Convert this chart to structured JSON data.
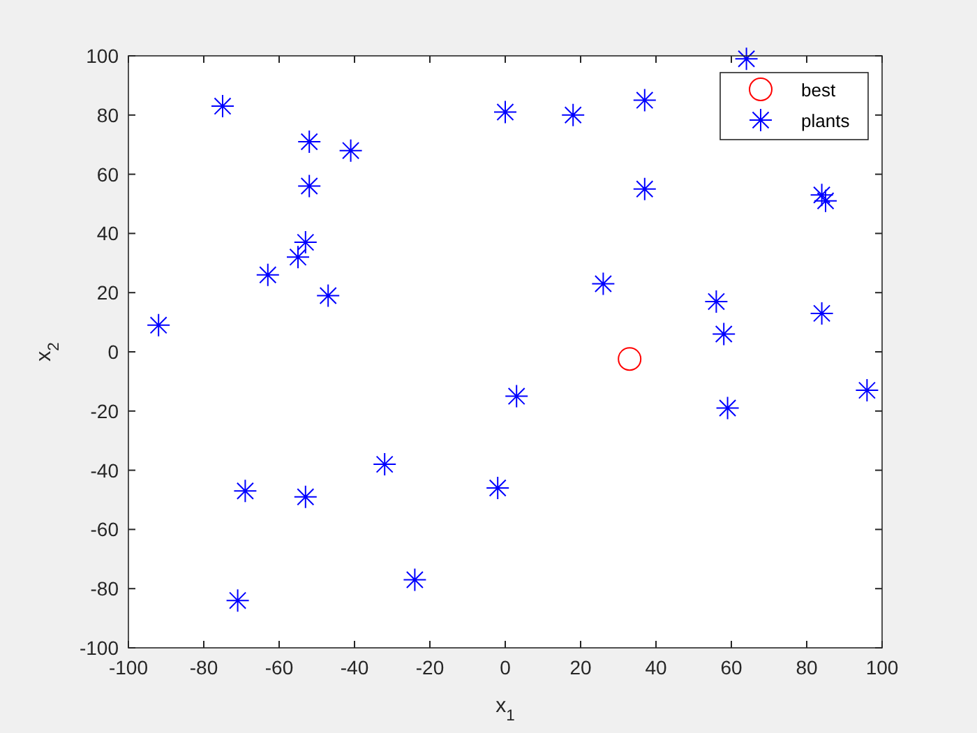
{
  "chart_data": {
    "type": "scatter",
    "xlabel": "x$_{1}$",
    "ylabel": "x$_{2}$",
    "xlim": [
      -100,
      100
    ],
    "ylim": [
      -100,
      100
    ],
    "xticks": [
      -100,
      -80,
      -60,
      -40,
      -20,
      0,
      20,
      40,
      60,
      80,
      100
    ],
    "yticks": [
      -100,
      -80,
      -60,
      -40,
      -20,
      0,
      20,
      40,
      60,
      80,
      100
    ],
    "grid": false,
    "legend": "top right",
    "series": [
      {
        "name": "best",
        "color": "#ff0000",
        "marker": "circle",
        "x": [
          33
        ],
        "values": [
          -2.4
        ]
      },
      {
        "name": "plants",
        "color": "#0000ff",
        "marker": "cross",
        "x": [
          -75,
          -52,
          -41,
          -52,
          0,
          18,
          37,
          64,
          37,
          84,
          85,
          -53,
          -55,
          -63,
          -47,
          -92,
          26,
          56,
          58,
          84,
          3,
          59,
          96,
          -32,
          -2,
          -69,
          -53,
          -24,
          -71
        ],
        "values": [
          83,
          71,
          68,
          56,
          81,
          80,
          85,
          99,
          55,
          53,
          51,
          37,
          32,
          26,
          19,
          9,
          23,
          17,
          6,
          13,
          -15,
          -19,
          -13,
          -38,
          -46,
          -47,
          -49,
          -77,
          -84
        ]
      }
    ]
  }
}
